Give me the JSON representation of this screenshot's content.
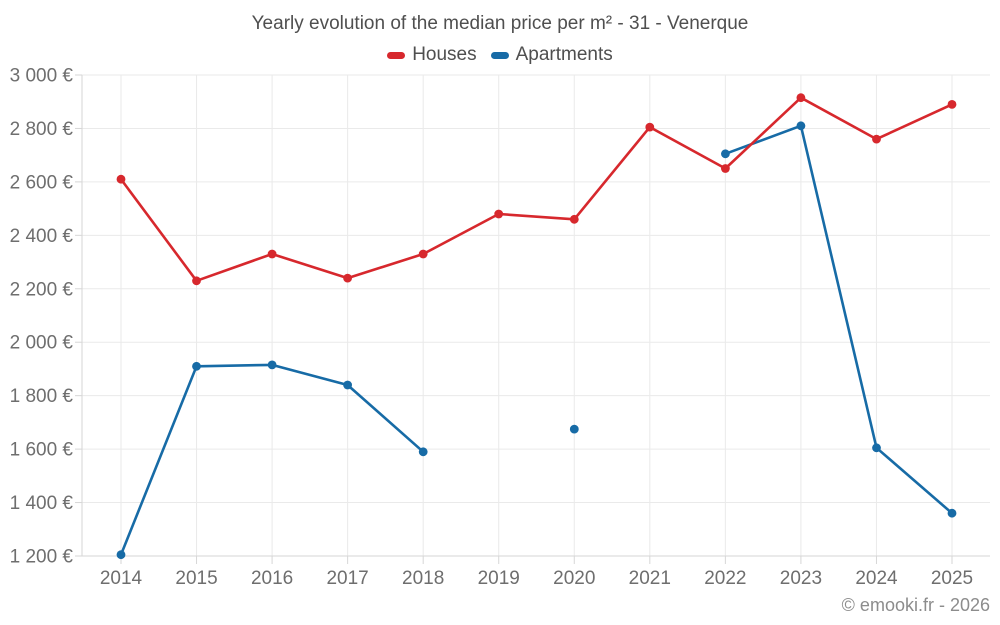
{
  "footer": {
    "credit": "© emooki.fr - 2026"
  },
  "style": {
    "houses_color": "#d7282d",
    "apartments_color": "#176ba6",
    "grid_color": "#eaeaea",
    "axis_color": "#d6d6d6",
    "title_color": "#4f4f4f",
    "tick_label_color": "#6e6e6e",
    "credit_color": "#8c8c8c"
  },
  "chart_data": {
    "type": "line",
    "title": "Yearly evolution of the median price per m² - 31 - Venerque",
    "categories": [
      "2014",
      "2015",
      "2016",
      "2017",
      "2018",
      "2019",
      "2020",
      "2021",
      "2022",
      "2023",
      "2024",
      "2025"
    ],
    "series": [
      {
        "name": "Houses",
        "color": "#d7282d",
        "values": [
          2610,
          2230,
          2330,
          2240,
          2330,
          2480,
          2460,
          2805,
          2650,
          2915,
          2760,
          2890
        ]
      },
      {
        "name": "Apartments",
        "color": "#176ba6",
        "values": [
          1205,
          1910,
          1915,
          1840,
          1590,
          null,
          1675,
          null,
          2705,
          2810,
          1605,
          1360
        ]
      }
    ],
    "ylim": [
      1200,
      3000
    ],
    "ytick_step": 200,
    "ytick_labels": [
      "1 200 €",
      "1 400 €",
      "1 600 €",
      "1 800 €",
      "2 000 €",
      "2 200 €",
      "2 400 €",
      "2 600 €",
      "2 800 €",
      "3 000 €"
    ],
    "unit": "€",
    "grid": true,
    "legend_position": "top",
    "marker": "circle"
  }
}
